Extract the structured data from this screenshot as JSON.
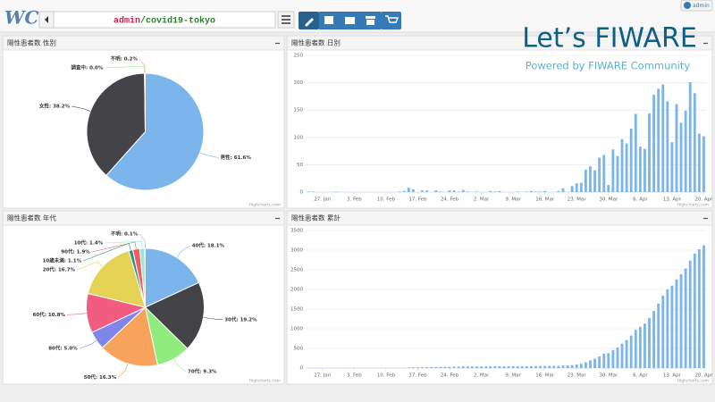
{
  "header": {
    "logo": "WC",
    "path_user": "admin",
    "path_name": "/covid19-tokyo",
    "user": "admin"
  },
  "branding": {
    "title": "Let’s FIWARE",
    "subtitle": "Powered by FIWARE Community"
  },
  "panels": [
    {
      "title": "陽性患者数 性別",
      "credit": "Highcharts.com",
      "chart": {
        "type": "pie",
        "values": [
          61.6,
          38.2,
          0.0,
          0.2
        ],
        "value_labels": [
          "男性: 61.6%",
          "女性: 38.2%",
          "調査中: 0.0%",
          "不明: 0.2%"
        ],
        "colors": [
          "#7cb5ec",
          "#434348",
          "#90ed7d",
          "#f7a35c"
        ]
      }
    },
    {
      "title": "陽性患者数 日別",
      "credit": "Highcharts.com",
      "chart": {
        "type": "bar",
        "color": "#7cb5ec",
        "grid": true,
        "categories": [
          null,
          null,
          null,
          "27. Jan",
          null,
          null,
          null,
          null,
          null,
          null,
          "3. Feb",
          null,
          null,
          null,
          null,
          null,
          null,
          "10. Feb",
          null,
          null,
          null,
          null,
          null,
          null,
          "17. Feb",
          null,
          null,
          null,
          null,
          null,
          null,
          "24. Feb",
          null,
          null,
          null,
          null,
          null,
          null,
          "2. Mar",
          null,
          null,
          null,
          null,
          null,
          null,
          "9. Mar",
          null,
          null,
          null,
          null,
          null,
          null,
          "16. Mar",
          null,
          null,
          null,
          null,
          null,
          null,
          "23. Mar",
          null,
          null,
          null,
          null,
          null,
          null,
          "30. Mar",
          null,
          null,
          null,
          null,
          null,
          null,
          "6. Apr",
          null,
          null,
          null,
          null,
          null,
          null,
          "13. Apr",
          null,
          null,
          null,
          null,
          null,
          null,
          "20. Apr"
        ],
        "values": [
          1,
          1,
          0,
          0,
          0,
          0,
          1,
          0,
          0,
          0,
          0,
          0,
          0,
          0,
          0,
          0,
          0,
          0,
          0,
          0,
          1,
          2,
          8,
          5,
          0,
          3,
          3,
          0,
          3,
          1,
          0,
          3,
          3,
          1,
          4,
          1,
          0,
          1,
          0,
          0,
          2,
          1,
          2,
          0,
          0,
          0,
          1,
          0,
          1,
          2,
          1,
          1,
          2,
          0,
          0,
          2,
          7,
          0,
          11,
          16,
          17,
          41,
          47,
          40,
          63,
          68,
          13,
          78,
          66,
          97,
          89,
          116,
          143,
          83,
          79,
          144,
          178,
          189,
          197,
          166,
          91,
          161,
          127,
          149,
          201,
          181,
          107,
          102
        ],
        "ylim": [
          0,
          250
        ],
        "yticks": [
          0,
          50,
          100,
          150,
          200,
          250
        ]
      }
    },
    {
      "title": "陽性患者数 年代",
      "credit": "Highcharts.com",
      "chart": {
        "type": "pie",
        "values": [
          18.1,
          19.2,
          9.3,
          16.3,
          5.0,
          10.8,
          16.7,
          1.1,
          1.9,
          1.4,
          0.1
        ],
        "value_labels": [
          "40代: 18.1%",
          "30代: 19.2%",
          "70代: 9.3%",
          "50代: 16.3%",
          "80代: 5.0%",
          "60代: 10.8%",
          "20代: 16.7%",
          "10歳未満: 1.1%",
          "90代: 1.9%",
          "10代: 1.4%",
          "不明: 0.1%"
        ],
        "colors": [
          "#7cb5ec",
          "#434348",
          "#90ed7d",
          "#f7a35c",
          "#8085e9",
          "#f15c80",
          "#e4d354",
          "#2b908f",
          "#f45b5b",
          "#91e8e1",
          "#7cb5ec"
        ]
      }
    },
    {
      "title": "陽性患者数 累計",
      "credit": "Highcharts.com",
      "chart": {
        "type": "bar",
        "color": "#7cb5ec",
        "grid": true,
        "categories": [
          null,
          null,
          null,
          "27. Jan",
          null,
          null,
          null,
          null,
          null,
          null,
          "3. Feb",
          null,
          null,
          null,
          null,
          null,
          null,
          "10. Feb",
          null,
          null,
          null,
          null,
          null,
          null,
          "17. Feb",
          null,
          null,
          null,
          null,
          null,
          null,
          "24. Feb",
          null,
          null,
          null,
          null,
          null,
          null,
          "2. Mar",
          null,
          null,
          null,
          null,
          null,
          null,
          "9. Mar",
          null,
          null,
          null,
          null,
          null,
          null,
          "16. Mar",
          null,
          null,
          null,
          null,
          null,
          null,
          "23. Mar",
          null,
          null,
          null,
          null,
          null,
          null,
          "30. Mar",
          null,
          null,
          null,
          null,
          null,
          null,
          "6. Apr",
          null,
          null,
          null,
          null,
          null,
          null,
          "13. Apr",
          null,
          null,
          null,
          null,
          null,
          null,
          "20. Apr"
        ],
        "values": [
          1,
          2,
          2,
          2,
          2,
          2,
          3,
          3,
          3,
          3,
          3,
          3,
          3,
          3,
          3,
          3,
          3,
          3,
          3,
          3,
          4,
          6,
          14,
          19,
          19,
          22,
          25,
          25,
          28,
          29,
          29,
          32,
          35,
          36,
          40,
          41,
          41,
          42,
          42,
          42,
          44,
          45,
          47,
          47,
          47,
          47,
          48,
          48,
          49,
          51,
          52,
          53,
          55,
          55,
          55,
          57,
          64,
          64,
          75,
          91,
          108,
          149,
          196,
          236,
          299,
          367,
          380,
          458,
          524,
          621,
          710,
          826,
          969,
          1052,
          1131,
          1275,
          1453,
          1642,
          1839,
          2005,
          2096,
          2257,
          2384,
          2533,
          2734,
          2915,
          3022,
          3124
        ],
        "ylim": [
          0,
          3500
        ],
        "yticks": [
          0,
          500,
          1000,
          1500,
          2000,
          2500,
          3000,
          3500
        ]
      }
    }
  ]
}
